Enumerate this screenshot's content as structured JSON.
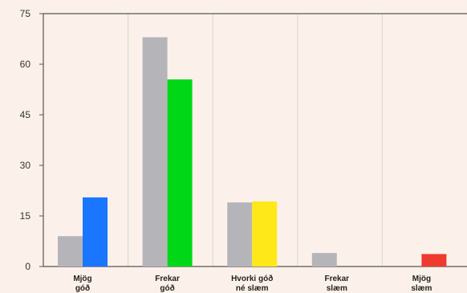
{
  "chart_data": {
    "type": "bar",
    "categories": [
      [
        "Mjög",
        "góð"
      ],
      [
        "Frekar",
        "góð"
      ],
      [
        "Hvorki góð",
        "né slæm"
      ],
      [
        "Frekar",
        "slæm"
      ],
      [
        "Mjög",
        "slæm"
      ]
    ],
    "series": [
      {
        "values": [
          9,
          68,
          19,
          4,
          0
        ],
        "color": "#b5b5b9",
        "uniform": true
      },
      {
        "values": [
          20.5,
          55.5,
          19.3,
          0,
          3.7
        ],
        "colors": [
          "#1a75ff",
          "#00d817",
          "#ffe81a",
          "#cfcfcf",
          "#ef3a2e"
        ]
      }
    ],
    "yticks": [
      "0",
      "15",
      "30",
      "45",
      "60",
      "75"
    ],
    "ylim": [
      0,
      75
    ],
    "grid": "vertical",
    "legend": "none",
    "colors": {
      "background": "#fcf1ea",
      "axis": "#555555",
      "grid": "#d5d5d5"
    }
  }
}
